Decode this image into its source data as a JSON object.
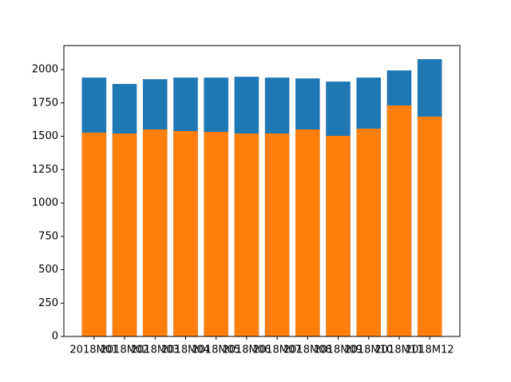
{
  "chart_data": {
    "type": "bar",
    "categories": [
      "2018M01",
      "2018M02",
      "2018M03",
      "2018M04",
      "2018M05",
      "2018M06",
      "2018M07",
      "2018M08",
      "2018M09",
      "2018M10",
      "2018M11",
      "2018M12"
    ],
    "series": [
      {
        "color": "#1f77b4",
        "values": [
          1940,
          1892,
          1928,
          1940,
          1940,
          1946,
          1940,
          1934,
          1910,
          1940,
          1994,
          2078
        ]
      },
      {
        "color": "#ff7f0e",
        "values": [
          1527,
          1521,
          1551,
          1539,
          1533,
          1521,
          1521,
          1551,
          1503,
          1557,
          1731,
          1647
        ]
      }
    ],
    "ylim": [
      0,
      2180
    ],
    "yticks": [
      0,
      250,
      500,
      750,
      1000,
      1250,
      1500,
      1750,
      2000
    ]
  }
}
